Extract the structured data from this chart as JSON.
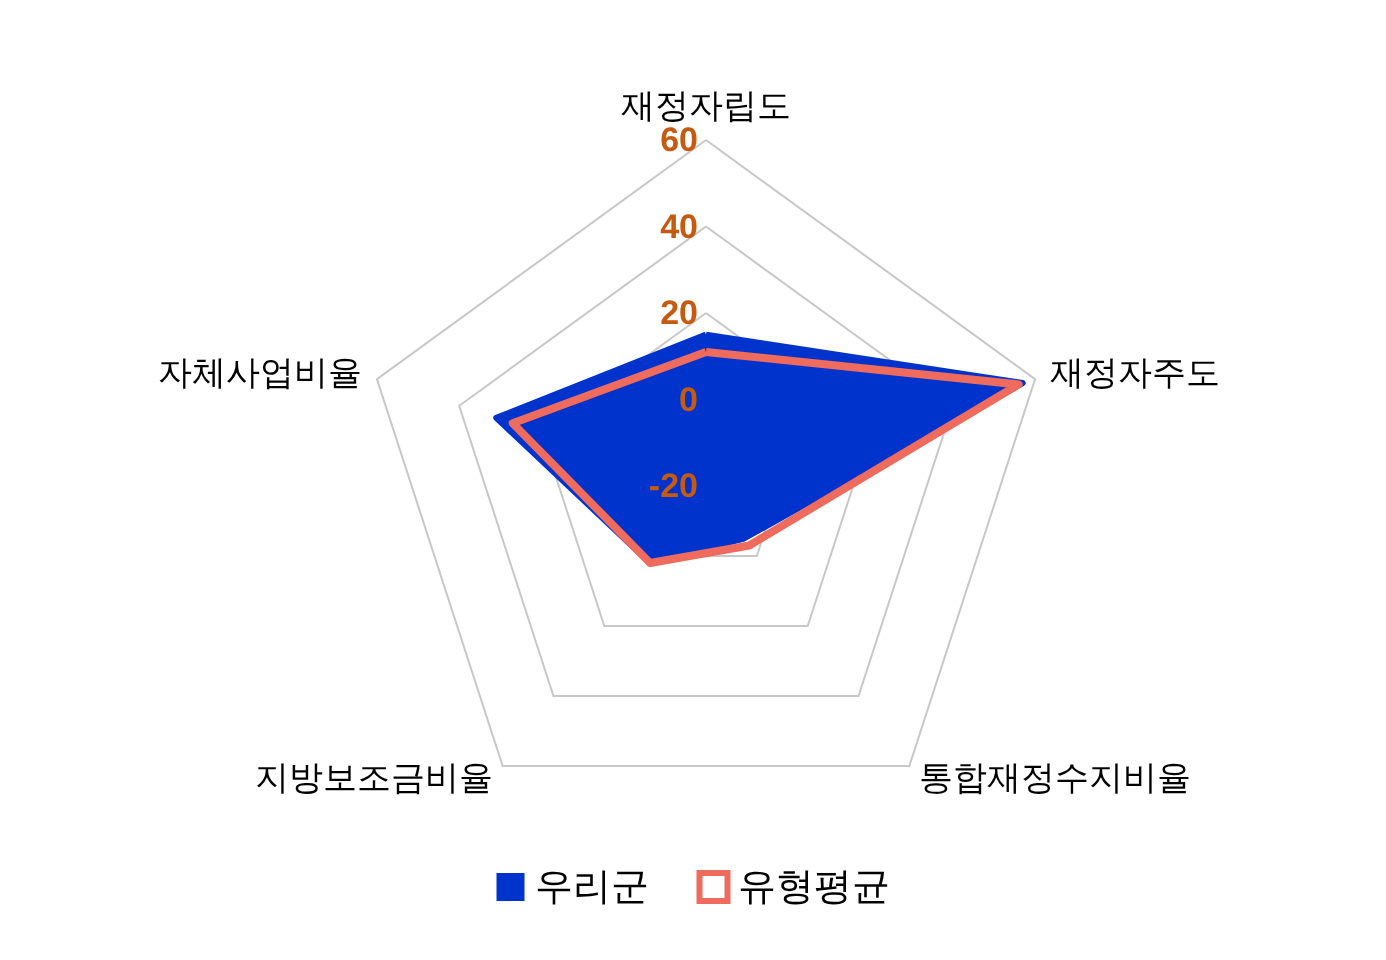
{
  "chart_data": {
    "type": "radar",
    "categories": [
      "재정자립도",
      "재정자주도",
      "통합재정수지비율",
      "지방보조금비율",
      "자체사업비율"
    ],
    "series": [
      {
        "name": "우리군",
        "type": "area",
        "color": "#0033cc",
        "values": [
          15,
          57,
          -5,
          2,
          31
        ]
      },
      {
        "name": "유형평균",
        "color": "#ee6b5e",
        "values": [
          11,
          56,
          -3,
          2,
          27
        ]
      }
    ],
    "ylim": [
      -20,
      60
    ],
    "yticks": [
      -20,
      0,
      20,
      40,
      60
    ],
    "legend": "bottom",
    "marker": "none",
    "line_style": "solid",
    "grid": true
  }
}
